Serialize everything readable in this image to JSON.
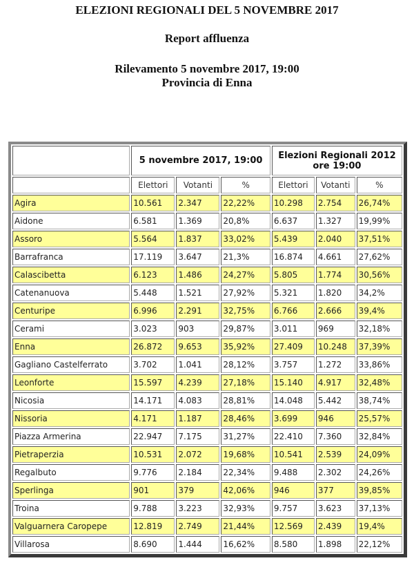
{
  "header": {
    "title": "ELEZIONI REGIONALI DEL 5 NOVEMBRE 2017",
    "subtitle": "Report affluenza",
    "survey": "Rilevamento 5 novembre 2017, 19:00",
    "province": "Provincia di Enna"
  },
  "table": {
    "group_headers": [
      "",
      "5 novembre 2017, 19:00",
      "Elezioni Regionali 2012 ore 19:00"
    ],
    "columns": [
      "",
      "Elettori",
      "Votanti",
      "%",
      "Elettori",
      "Votanti",
      "%"
    ],
    "highlight_color": "#ffff99",
    "rows": [
      {
        "comune": "Agira",
        "el_2017": "10.561",
        "vot_2017": "2.347",
        "pct_2017": "22,22%",
        "el_2012": "10.298",
        "vot_2012": "2.754",
        "pct_2012": "26,74%",
        "highlight": true
      },
      {
        "comune": "Aidone",
        "el_2017": "6.581",
        "vot_2017": "1.369",
        "pct_2017": "20,8%",
        "el_2012": "6.637",
        "vot_2012": "1.327",
        "pct_2012": "19,99%",
        "highlight": false
      },
      {
        "comune": "Assoro",
        "el_2017": "5.564",
        "vot_2017": "1.837",
        "pct_2017": "33,02%",
        "el_2012": "5.439",
        "vot_2012": "2.040",
        "pct_2012": "37,51%",
        "highlight": true
      },
      {
        "comune": "Barrafranca",
        "el_2017": "17.119",
        "vot_2017": "3.647",
        "pct_2017": "21,3%",
        "el_2012": "16.874",
        "vot_2012": "4.661",
        "pct_2012": "27,62%",
        "highlight": false
      },
      {
        "comune": "Calascibetta",
        "el_2017": "6.123",
        "vot_2017": "1.486",
        "pct_2017": "24,27%",
        "el_2012": "5.805",
        "vot_2012": "1.774",
        "pct_2012": "30,56%",
        "highlight": true
      },
      {
        "comune": "Catenanuova",
        "el_2017": "5.448",
        "vot_2017": "1.521",
        "pct_2017": "27,92%",
        "el_2012": "5.321",
        "vot_2012": "1.820",
        "pct_2012": "34,2%",
        "highlight": false
      },
      {
        "comune": "Centuripe",
        "el_2017": "6.996",
        "vot_2017": "2.291",
        "pct_2017": "32,75%",
        "el_2012": "6.766",
        "vot_2012": "2.666",
        "pct_2012": "39,4%",
        "highlight": true
      },
      {
        "comune": "Cerami",
        "el_2017": "3.023",
        "vot_2017": "903",
        "pct_2017": "29,87%",
        "el_2012": "3.011",
        "vot_2012": "969",
        "pct_2012": "32,18%",
        "highlight": false
      },
      {
        "comune": "Enna",
        "el_2017": "26.872",
        "vot_2017": "9.653",
        "pct_2017": "35,92%",
        "el_2012": "27.409",
        "vot_2012": "10.248",
        "pct_2012": "37,39%",
        "highlight": true
      },
      {
        "comune": "Gagliano Castelferrato",
        "el_2017": "3.702",
        "vot_2017": "1.041",
        "pct_2017": "28,12%",
        "el_2012": "3.757",
        "vot_2012": "1.272",
        "pct_2012": "33,86%",
        "highlight": false
      },
      {
        "comune": "Leonforte",
        "el_2017": "15.597",
        "vot_2017": "4.239",
        "pct_2017": "27,18%",
        "el_2012": "15.140",
        "vot_2012": "4.917",
        "pct_2012": "32,48%",
        "highlight": true
      },
      {
        "comune": "Nicosia",
        "el_2017": "14.171",
        "vot_2017": "4.083",
        "pct_2017": "28,81%",
        "el_2012": "14.048",
        "vot_2012": "5.442",
        "pct_2012": "38,74%",
        "highlight": false
      },
      {
        "comune": "Nissoria",
        "el_2017": "4.171",
        "vot_2017": "1.187",
        "pct_2017": "28,46%",
        "el_2012": "3.699",
        "vot_2012": "946",
        "pct_2012": "25,57%",
        "highlight": true
      },
      {
        "comune": "Piazza Armerina",
        "el_2017": "22.947",
        "vot_2017": "7.175",
        "pct_2017": "31,27%",
        "el_2012": "22.410",
        "vot_2012": "7.360",
        "pct_2012": "32,84%",
        "highlight": false
      },
      {
        "comune": "Pietraperzia",
        "el_2017": "10.531",
        "vot_2017": "2.072",
        "pct_2017": "19,68%",
        "el_2012": "10.541",
        "vot_2012": "2.539",
        "pct_2012": "24,09%",
        "highlight": true
      },
      {
        "comune": "Regalbuto",
        "el_2017": "9.776",
        "vot_2017": "2.184",
        "pct_2017": "22,34%",
        "el_2012": "9.488",
        "vot_2012": "2.302",
        "pct_2012": "24,26%",
        "highlight": false
      },
      {
        "comune": "Sperlinga",
        "el_2017": "901",
        "vot_2017": "379",
        "pct_2017": "42,06%",
        "el_2012": "946",
        "vot_2012": "377",
        "pct_2012": "39,85%",
        "highlight": true
      },
      {
        "comune": "Troina",
        "el_2017": "9.788",
        "vot_2017": "3.223",
        "pct_2017": "32,93%",
        "el_2012": "9.757",
        "vot_2012": "3.623",
        "pct_2012": "37,13%",
        "highlight": false
      },
      {
        "comune": "Valguarnera Caropepe",
        "el_2017": "12.819",
        "vot_2017": "2.749",
        "pct_2017": "21,44%",
        "el_2012": "12.569",
        "vot_2012": "2.439",
        "pct_2012": "19,4%",
        "highlight": true
      },
      {
        "comune": "Villarosa",
        "el_2017": "8.690",
        "vot_2017": "1.444",
        "pct_2017": "16,62%",
        "el_2012": "8.580",
        "vot_2012": "1.898",
        "pct_2012": "22,12%",
        "highlight": false
      }
    ]
  }
}
